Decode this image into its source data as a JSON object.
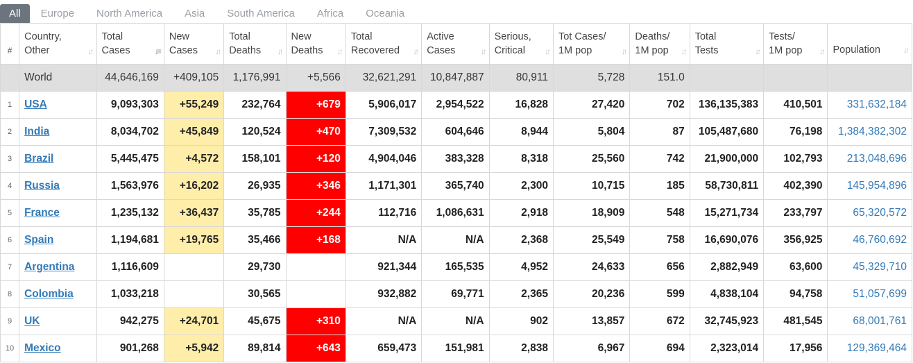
{
  "tabs": [
    "All",
    "Europe",
    "North America",
    "Asia",
    "South America",
    "Africa",
    "Oceania"
  ],
  "headers": [
    {
      "l1": "#",
      "l2": ""
    },
    {
      "l1": "Country,",
      "l2": "Other"
    },
    {
      "l1": "Total",
      "l2": "Cases"
    },
    {
      "l1": "New",
      "l2": "Cases"
    },
    {
      "l1": "Total",
      "l2": "Deaths"
    },
    {
      "l1": "New",
      "l2": "Deaths"
    },
    {
      "l1": "Total",
      "l2": "Recovered"
    },
    {
      "l1": "Active",
      "l2": "Cases"
    },
    {
      "l1": "Serious,",
      "l2": "Critical"
    },
    {
      "l1": "Tot Cases/",
      "l2": "1M pop"
    },
    {
      "l1": "Deaths/",
      "l2": "1M pop"
    },
    {
      "l1": "Total",
      "l2": "Tests"
    },
    {
      "l1": "Tests/",
      "l2": "1M pop"
    },
    {
      "l1": "Population",
      "l2": ""
    }
  ],
  "world": {
    "name": "World",
    "total_cases": "44,646,169",
    "new_cases": "+409,105",
    "total_deaths": "1,176,991",
    "new_deaths": "+5,566",
    "total_recovered": "32,621,291",
    "active_cases": "10,847,887",
    "serious": "80,911",
    "cases_per_1m": "5,728",
    "deaths_per_1m": "151.0",
    "total_tests": "",
    "tests_per_1m": "",
    "population": ""
  },
  "rows": [
    {
      "rank": "1",
      "country": "USA",
      "total_cases": "9,093,303",
      "new_cases": "+55,249",
      "total_deaths": "232,764",
      "new_deaths": "+679",
      "total_recovered": "5,906,017",
      "active_cases": "2,954,522",
      "serious": "16,828",
      "cases_per_1m": "27,420",
      "deaths_per_1m": "702",
      "total_tests": "136,135,383",
      "tests_per_1m": "410,501",
      "population": "331,632,184"
    },
    {
      "rank": "2",
      "country": "India",
      "total_cases": "8,034,702",
      "new_cases": "+45,849",
      "total_deaths": "120,524",
      "new_deaths": "+470",
      "total_recovered": "7,309,532",
      "active_cases": "604,646",
      "serious": "8,944",
      "cases_per_1m": "5,804",
      "deaths_per_1m": "87",
      "total_tests": "105,487,680",
      "tests_per_1m": "76,198",
      "population": "1,384,382,302"
    },
    {
      "rank": "3",
      "country": "Brazil",
      "total_cases": "5,445,475",
      "new_cases": "+4,572",
      "total_deaths": "158,101",
      "new_deaths": "+120",
      "total_recovered": "4,904,046",
      "active_cases": "383,328",
      "serious": "8,318",
      "cases_per_1m": "25,560",
      "deaths_per_1m": "742",
      "total_tests": "21,900,000",
      "tests_per_1m": "102,793",
      "population": "213,048,696"
    },
    {
      "rank": "4",
      "country": "Russia",
      "total_cases": "1,563,976",
      "new_cases": "+16,202",
      "total_deaths": "26,935",
      "new_deaths": "+346",
      "total_recovered": "1,171,301",
      "active_cases": "365,740",
      "serious": "2,300",
      "cases_per_1m": "10,715",
      "deaths_per_1m": "185",
      "total_tests": "58,730,811",
      "tests_per_1m": "402,390",
      "population": "145,954,896"
    },
    {
      "rank": "5",
      "country": "France",
      "total_cases": "1,235,132",
      "new_cases": "+36,437",
      "total_deaths": "35,785",
      "new_deaths": "+244",
      "total_recovered": "112,716",
      "active_cases": "1,086,631",
      "serious": "2,918",
      "cases_per_1m": "18,909",
      "deaths_per_1m": "548",
      "total_tests": "15,271,734",
      "tests_per_1m": "233,797",
      "population": "65,320,572"
    },
    {
      "rank": "6",
      "country": "Spain",
      "total_cases": "1,194,681",
      "new_cases": "+19,765",
      "total_deaths": "35,466",
      "new_deaths": "+168",
      "total_recovered": "N/A",
      "active_cases": "N/A",
      "serious": "2,368",
      "cases_per_1m": "25,549",
      "deaths_per_1m": "758",
      "total_tests": "16,690,076",
      "tests_per_1m": "356,925",
      "population": "46,760,692"
    },
    {
      "rank": "7",
      "country": "Argentina",
      "total_cases": "1,116,609",
      "new_cases": "",
      "total_deaths": "29,730",
      "new_deaths": "",
      "total_recovered": "921,344",
      "active_cases": "165,535",
      "serious": "4,952",
      "cases_per_1m": "24,633",
      "deaths_per_1m": "656",
      "total_tests": "2,882,949",
      "tests_per_1m": "63,600",
      "population": "45,329,710"
    },
    {
      "rank": "8",
      "country": "Colombia",
      "total_cases": "1,033,218",
      "new_cases": "",
      "total_deaths": "30,565",
      "new_deaths": "",
      "total_recovered": "932,882",
      "active_cases": "69,771",
      "serious": "2,365",
      "cases_per_1m": "20,236",
      "deaths_per_1m": "599",
      "total_tests": "4,838,104",
      "tests_per_1m": "94,758",
      "population": "51,057,699"
    },
    {
      "rank": "9",
      "country": "UK",
      "total_cases": "942,275",
      "new_cases": "+24,701",
      "total_deaths": "45,675",
      "new_deaths": "+310",
      "total_recovered": "N/A",
      "active_cases": "N/A",
      "serious": "902",
      "cases_per_1m": "13,857",
      "deaths_per_1m": "672",
      "total_tests": "32,745,923",
      "tests_per_1m": "481,545",
      "population": "68,001,761"
    },
    {
      "rank": "10",
      "country": "Mexico",
      "total_cases": "901,268",
      "new_cases": "+5,942",
      "total_deaths": "89,814",
      "new_deaths": "+643",
      "total_recovered": "659,473",
      "active_cases": "151,981",
      "serious": "2,838",
      "cases_per_1m": "6,967",
      "deaths_per_1m": "694",
      "total_tests": "2,323,014",
      "tests_per_1m": "17,956",
      "population": "129,369,464"
    }
  ],
  "colors": {
    "tab_active": "#6c757d",
    "new_cases_bg": "#ffeeaa",
    "new_deaths_bg": "#ff0000",
    "link": "#337ab7",
    "world_bg": "#dfdfdf"
  }
}
